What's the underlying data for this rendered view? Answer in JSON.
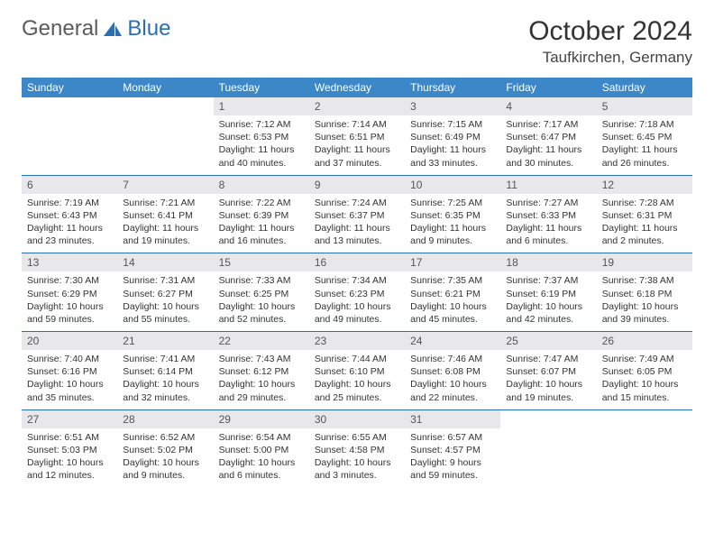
{
  "brand": {
    "part1": "General",
    "part2": "Blue",
    "logo_color": "#2a6fb5",
    "text_color": "#5b5b5b"
  },
  "title": "October 2024",
  "location": "Taufkirchen, Germany",
  "colors": {
    "header_bg": "#3b87c8",
    "daynum_bg": "#e8e8ea",
    "border": "#2a6fb5"
  },
  "weekdays": [
    "Sunday",
    "Monday",
    "Tuesday",
    "Wednesday",
    "Thursday",
    "Friday",
    "Saturday"
  ],
  "weeks": [
    [
      null,
      null,
      {
        "n": "1",
        "sr": "7:12 AM",
        "ss": "6:53 PM",
        "dl": "11 hours and 40 minutes."
      },
      {
        "n": "2",
        "sr": "7:14 AM",
        "ss": "6:51 PM",
        "dl": "11 hours and 37 minutes."
      },
      {
        "n": "3",
        "sr": "7:15 AM",
        "ss": "6:49 PM",
        "dl": "11 hours and 33 minutes."
      },
      {
        "n": "4",
        "sr": "7:17 AM",
        "ss": "6:47 PM",
        "dl": "11 hours and 30 minutes."
      },
      {
        "n": "5",
        "sr": "7:18 AM",
        "ss": "6:45 PM",
        "dl": "11 hours and 26 minutes."
      }
    ],
    [
      {
        "n": "6",
        "sr": "7:19 AM",
        "ss": "6:43 PM",
        "dl": "11 hours and 23 minutes."
      },
      {
        "n": "7",
        "sr": "7:21 AM",
        "ss": "6:41 PM",
        "dl": "11 hours and 19 minutes."
      },
      {
        "n": "8",
        "sr": "7:22 AM",
        "ss": "6:39 PM",
        "dl": "11 hours and 16 minutes."
      },
      {
        "n": "9",
        "sr": "7:24 AM",
        "ss": "6:37 PM",
        "dl": "11 hours and 13 minutes."
      },
      {
        "n": "10",
        "sr": "7:25 AM",
        "ss": "6:35 PM",
        "dl": "11 hours and 9 minutes."
      },
      {
        "n": "11",
        "sr": "7:27 AM",
        "ss": "6:33 PM",
        "dl": "11 hours and 6 minutes."
      },
      {
        "n": "12",
        "sr": "7:28 AM",
        "ss": "6:31 PM",
        "dl": "11 hours and 2 minutes."
      }
    ],
    [
      {
        "n": "13",
        "sr": "7:30 AM",
        "ss": "6:29 PM",
        "dl": "10 hours and 59 minutes."
      },
      {
        "n": "14",
        "sr": "7:31 AM",
        "ss": "6:27 PM",
        "dl": "10 hours and 55 minutes."
      },
      {
        "n": "15",
        "sr": "7:33 AM",
        "ss": "6:25 PM",
        "dl": "10 hours and 52 minutes."
      },
      {
        "n": "16",
        "sr": "7:34 AM",
        "ss": "6:23 PM",
        "dl": "10 hours and 49 minutes."
      },
      {
        "n": "17",
        "sr": "7:35 AM",
        "ss": "6:21 PM",
        "dl": "10 hours and 45 minutes."
      },
      {
        "n": "18",
        "sr": "7:37 AM",
        "ss": "6:19 PM",
        "dl": "10 hours and 42 minutes."
      },
      {
        "n": "19",
        "sr": "7:38 AM",
        "ss": "6:18 PM",
        "dl": "10 hours and 39 minutes."
      }
    ],
    [
      {
        "n": "20",
        "sr": "7:40 AM",
        "ss": "6:16 PM",
        "dl": "10 hours and 35 minutes."
      },
      {
        "n": "21",
        "sr": "7:41 AM",
        "ss": "6:14 PM",
        "dl": "10 hours and 32 minutes."
      },
      {
        "n": "22",
        "sr": "7:43 AM",
        "ss": "6:12 PM",
        "dl": "10 hours and 29 minutes."
      },
      {
        "n": "23",
        "sr": "7:44 AM",
        "ss": "6:10 PM",
        "dl": "10 hours and 25 minutes."
      },
      {
        "n": "24",
        "sr": "7:46 AM",
        "ss": "6:08 PM",
        "dl": "10 hours and 22 minutes."
      },
      {
        "n": "25",
        "sr": "7:47 AM",
        "ss": "6:07 PM",
        "dl": "10 hours and 19 minutes."
      },
      {
        "n": "26",
        "sr": "7:49 AM",
        "ss": "6:05 PM",
        "dl": "10 hours and 15 minutes."
      }
    ],
    [
      {
        "n": "27",
        "sr": "6:51 AM",
        "ss": "5:03 PM",
        "dl": "10 hours and 12 minutes."
      },
      {
        "n": "28",
        "sr": "6:52 AM",
        "ss": "5:02 PM",
        "dl": "10 hours and 9 minutes."
      },
      {
        "n": "29",
        "sr": "6:54 AM",
        "ss": "5:00 PM",
        "dl": "10 hours and 6 minutes."
      },
      {
        "n": "30",
        "sr": "6:55 AM",
        "ss": "4:58 PM",
        "dl": "10 hours and 3 minutes."
      },
      {
        "n": "31",
        "sr": "6:57 AM",
        "ss": "4:57 PM",
        "dl": "9 hours and 59 minutes."
      },
      null,
      null
    ]
  ],
  "labels": {
    "sunrise": "Sunrise:",
    "sunset": "Sunset:",
    "daylight": "Daylight:"
  }
}
